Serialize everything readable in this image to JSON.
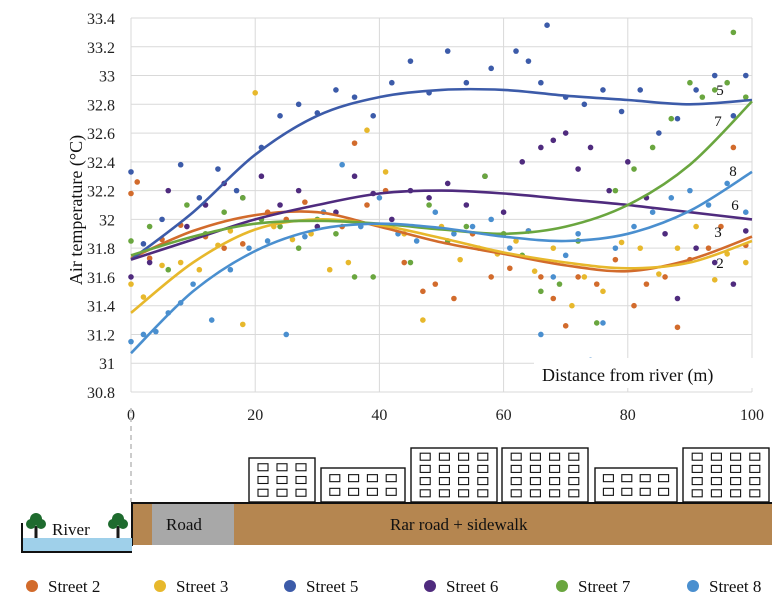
{
  "chart_data": {
    "type": "scatter",
    "ylabel": "Air temperature (°C)",
    "xlabel": "Distance from river (m)",
    "xlim": [
      0,
      100
    ],
    "ylim": [
      30.8,
      33.4
    ],
    "xticks": [
      0,
      20,
      40,
      60,
      80,
      100
    ],
    "yticks": [
      30.8,
      31,
      31.2,
      31.4,
      31.6,
      31.8,
      32,
      32.2,
      32.4,
      32.6,
      32.8,
      33,
      33.2,
      33.4
    ],
    "ytick_labels": [
      "30.8",
      "31",
      "31.2",
      "31.4",
      "31.6",
      "31.8",
      "32",
      "32.2",
      "32.4",
      "32.6",
      "32.8",
      "33",
      "33.2",
      "33.4"
    ],
    "grid": true,
    "legend_position": "bottom",
    "series": [
      {
        "name": "Street 2",
        "label": "2",
        "color": "#d26b2c",
        "curve": [
          [
            0,
            31.73
          ],
          [
            10,
            31.92
          ],
          [
            20,
            32.03
          ],
          [
            30,
            32.05
          ],
          [
            40,
            31.95
          ],
          [
            50,
            31.84
          ],
          [
            60,
            31.76
          ],
          [
            70,
            31.68
          ],
          [
            80,
            31.64
          ],
          [
            90,
            31.72
          ],
          [
            100,
            31.88
          ]
        ],
        "points": [
          [
            0,
            32.18
          ],
          [
            1,
            32.26
          ],
          [
            3,
            31.73
          ],
          [
            5,
            31.86
          ],
          [
            8,
            31.96
          ],
          [
            12,
            31.88
          ],
          [
            15,
            31.8
          ],
          [
            18,
            31.83
          ],
          [
            22,
            32.05
          ],
          [
            25,
            32.0
          ],
          [
            28,
            32.12
          ],
          [
            31,
            32.05
          ],
          [
            34,
            31.95
          ],
          [
            36,
            32.53
          ],
          [
            38,
            32.1
          ],
          [
            41,
            32.2
          ],
          [
            44,
            31.7
          ],
          [
            47,
            31.5
          ],
          [
            49,
            31.55
          ],
          [
            52,
            31.45
          ],
          [
            55,
            31.9
          ],
          [
            58,
            31.6
          ],
          [
            61,
            31.66
          ],
          [
            64,
            31.92
          ],
          [
            66,
            31.6
          ],
          [
            68,
            31.45
          ],
          [
            70,
            31.26
          ],
          [
            72,
            31.6
          ],
          [
            75,
            31.55
          ],
          [
            78,
            31.72
          ],
          [
            81,
            31.4
          ],
          [
            83,
            31.55
          ],
          [
            86,
            31.6
          ],
          [
            88,
            31.25
          ],
          [
            90,
            31.72
          ],
          [
            93,
            31.8
          ],
          [
            95,
            31.95
          ],
          [
            97,
            32.5
          ],
          [
            99,
            31.82
          ]
        ]
      },
      {
        "name": "Street 3",
        "label": "3",
        "color": "#e7b82c",
        "curve": [
          [
            0,
            31.35
          ],
          [
            10,
            31.7
          ],
          [
            20,
            31.93
          ],
          [
            30,
            32.0
          ],
          [
            40,
            31.96
          ],
          [
            50,
            31.87
          ],
          [
            60,
            31.77
          ],
          [
            70,
            31.7
          ],
          [
            80,
            31.66
          ],
          [
            90,
            31.7
          ],
          [
            100,
            31.85
          ]
        ],
        "points": [
          [
            0,
            31.55
          ],
          [
            2,
            31.46
          ],
          [
            5,
            31.68
          ],
          [
            8,
            31.7
          ],
          [
            11,
            31.65
          ],
          [
            14,
            31.82
          ],
          [
            16,
            31.92
          ],
          [
            18,
            31.27
          ],
          [
            20,
            32.88
          ],
          [
            23,
            31.95
          ],
          [
            26,
            31.86
          ],
          [
            29,
            31.9
          ],
          [
            32,
            31.65
          ],
          [
            35,
            31.7
          ],
          [
            38,
            32.62
          ],
          [
            41,
            32.33
          ],
          [
            44,
            31.9
          ],
          [
            47,
            31.3
          ],
          [
            50,
            31.95
          ],
          [
            53,
            31.72
          ],
          [
            56,
            31.8
          ],
          [
            59,
            31.76
          ],
          [
            62,
            31.85
          ],
          [
            65,
            31.64
          ],
          [
            68,
            31.8
          ],
          [
            71,
            31.4
          ],
          [
            73,
            31.6
          ],
          [
            76,
            31.5
          ],
          [
            79,
            31.84
          ],
          [
            82,
            31.8
          ],
          [
            85,
            31.62
          ],
          [
            88,
            31.8
          ],
          [
            91,
            31.95
          ],
          [
            94,
            31.58
          ],
          [
            96,
            31.76
          ],
          [
            99,
            31.7
          ]
        ]
      },
      {
        "name": "Street 5",
        "label": "5",
        "color": "#3c5ba9",
        "curve": [
          [
            0,
            31.72
          ],
          [
            10,
            32.05
          ],
          [
            20,
            32.45
          ],
          [
            30,
            32.72
          ],
          [
            40,
            32.85
          ],
          [
            50,
            32.9
          ],
          [
            60,
            32.9
          ],
          [
            70,
            32.86
          ],
          [
            80,
            32.83
          ],
          [
            90,
            32.8
          ],
          [
            100,
            32.83
          ]
        ],
        "points": [
          [
            0,
            32.33
          ],
          [
            2,
            31.83
          ],
          [
            5,
            32.0
          ],
          [
            8,
            32.38
          ],
          [
            11,
            32.15
          ],
          [
            14,
            32.35
          ],
          [
            17,
            32.2
          ],
          [
            21,
            32.5
          ],
          [
            24,
            32.72
          ],
          [
            27,
            32.8
          ],
          [
            30,
            32.74
          ],
          [
            33,
            32.9
          ],
          [
            36,
            32.85
          ],
          [
            39,
            32.72
          ],
          [
            42,
            32.95
          ],
          [
            45,
            33.1
          ],
          [
            48,
            32.88
          ],
          [
            51,
            33.17
          ],
          [
            54,
            32.95
          ],
          [
            58,
            33.05
          ],
          [
            62,
            33.17
          ],
          [
            64,
            33.1
          ],
          [
            66,
            32.95
          ],
          [
            67,
            33.35
          ],
          [
            70,
            32.85
          ],
          [
            73,
            32.8
          ],
          [
            76,
            32.9
          ],
          [
            79,
            32.75
          ],
          [
            82,
            32.9
          ],
          [
            85,
            32.6
          ],
          [
            88,
            32.7
          ],
          [
            91,
            32.9
          ],
          [
            94,
            33.0
          ],
          [
            97,
            32.72
          ],
          [
            99,
            33.0
          ]
        ]
      },
      {
        "name": "Street 6",
        "label": "6",
        "color": "#4f2b7e",
        "curve": [
          [
            0,
            31.72
          ],
          [
            10,
            31.86
          ],
          [
            20,
            32.0
          ],
          [
            30,
            32.1
          ],
          [
            40,
            32.18
          ],
          [
            50,
            32.2
          ],
          [
            60,
            32.18
          ],
          [
            70,
            32.14
          ],
          [
            80,
            32.1
          ],
          [
            90,
            32.05
          ],
          [
            100,
            32.0
          ]
        ],
        "points": [
          [
            0,
            31.6
          ],
          [
            3,
            31.7
          ],
          [
            6,
            32.2
          ],
          [
            9,
            31.95
          ],
          [
            12,
            32.1
          ],
          [
            15,
            32.25
          ],
          [
            18,
            32.15
          ],
          [
            21,
            32.3
          ],
          [
            24,
            32.1
          ],
          [
            27,
            32.2
          ],
          [
            30,
            31.95
          ],
          [
            33,
            32.05
          ],
          [
            36,
            32.3
          ],
          [
            39,
            32.18
          ],
          [
            42,
            32.0
          ],
          [
            45,
            32.2
          ],
          [
            48,
            32.15
          ],
          [
            51,
            32.25
          ],
          [
            54,
            32.1
          ],
          [
            57,
            32.3
          ],
          [
            60,
            32.05
          ],
          [
            63,
            32.4
          ],
          [
            66,
            32.5
          ],
          [
            68,
            32.55
          ],
          [
            70,
            32.6
          ],
          [
            72,
            32.35
          ],
          [
            74,
            32.5
          ],
          [
            77,
            32.2
          ],
          [
            80,
            32.4
          ],
          [
            83,
            32.15
          ],
          [
            86,
            31.9
          ],
          [
            88,
            31.45
          ],
          [
            91,
            31.8
          ],
          [
            94,
            31.7
          ],
          [
            97,
            31.55
          ],
          [
            99,
            31.92
          ]
        ]
      },
      {
        "name": "Street 7",
        "label": "7",
        "color": "#6aa63f",
        "curve": [
          [
            0,
            31.75
          ],
          [
            10,
            31.88
          ],
          [
            20,
            31.97
          ],
          [
            30,
            31.99
          ],
          [
            40,
            31.97
          ],
          [
            50,
            31.93
          ],
          [
            60,
            31.9
          ],
          [
            70,
            31.95
          ],
          [
            80,
            32.1
          ],
          [
            90,
            32.38
          ],
          [
            100,
            32.82
          ]
        ],
        "points": [
          [
            0,
            31.85
          ],
          [
            3,
            31.95
          ],
          [
            6,
            31.65
          ],
          [
            9,
            32.1
          ],
          [
            12,
            31.9
          ],
          [
            15,
            32.05
          ],
          [
            18,
            32.15
          ],
          [
            21,
            32.0
          ],
          [
            24,
            31.95
          ],
          [
            27,
            31.8
          ],
          [
            30,
            32.0
          ],
          [
            33,
            31.9
          ],
          [
            36,
            31.6
          ],
          [
            39,
            31.6
          ],
          [
            42,
            31.95
          ],
          [
            45,
            31.7
          ],
          [
            48,
            32.1
          ],
          [
            51,
            31.85
          ],
          [
            54,
            31.95
          ],
          [
            57,
            32.3
          ],
          [
            60,
            31.9
          ],
          [
            63,
            31.75
          ],
          [
            66,
            31.5
          ],
          [
            69,
            31.55
          ],
          [
            72,
            31.85
          ],
          [
            75,
            31.28
          ],
          [
            78,
            32.2
          ],
          [
            81,
            32.35
          ],
          [
            84,
            32.5
          ],
          [
            87,
            32.7
          ],
          [
            90,
            32.95
          ],
          [
            92,
            32.85
          ],
          [
            94,
            32.9
          ],
          [
            96,
            32.95
          ],
          [
            97,
            33.3
          ],
          [
            99,
            32.85
          ]
        ]
      },
      {
        "name": "Street 8",
        "label": "8",
        "color": "#4a8fcf",
        "curve": [
          [
            0,
            31.07
          ],
          [
            10,
            31.5
          ],
          [
            20,
            31.78
          ],
          [
            30,
            31.93
          ],
          [
            40,
            31.97
          ],
          [
            50,
            31.94
          ],
          [
            60,
            31.88
          ],
          [
            70,
            31.85
          ],
          [
            80,
            31.9
          ],
          [
            90,
            32.06
          ],
          [
            100,
            32.33
          ]
        ],
        "points": [
          [
            0,
            31.15
          ],
          [
            2,
            31.2
          ],
          [
            4,
            31.22
          ],
          [
            6,
            31.35
          ],
          [
            8,
            31.42
          ],
          [
            10,
            31.55
          ],
          [
            13,
            31.3
          ],
          [
            16,
            31.65
          ],
          [
            19,
            31.8
          ],
          [
            22,
            31.85
          ],
          [
            25,
            31.2
          ],
          [
            28,
            31.88
          ],
          [
            31,
            32.05
          ],
          [
            34,
            32.38
          ],
          [
            37,
            31.95
          ],
          [
            40,
            32.15
          ],
          [
            43,
            31.9
          ],
          [
            46,
            31.85
          ],
          [
            49,
            32.05
          ],
          [
            52,
            31.9
          ],
          [
            55,
            31.95
          ],
          [
            58,
            32.0
          ],
          [
            61,
            31.8
          ],
          [
            64,
            31.92
          ],
          [
            66,
            31.2
          ],
          [
            68,
            31.6
          ],
          [
            70,
            31.75
          ],
          [
            72,
            31.9
          ],
          [
            74,
            31.02
          ],
          [
            76,
            31.28
          ],
          [
            78,
            31.8
          ],
          [
            81,
            31.95
          ],
          [
            84,
            32.05
          ],
          [
            87,
            32.15
          ],
          [
            90,
            32.2
          ],
          [
            93,
            32.1
          ],
          [
            96,
            32.25
          ],
          [
            99,
            32.05
          ]
        ]
      }
    ]
  },
  "scene": {
    "river_label": "River",
    "road_label": "Road",
    "far_road_label": "Rar road + sidewalk"
  }
}
